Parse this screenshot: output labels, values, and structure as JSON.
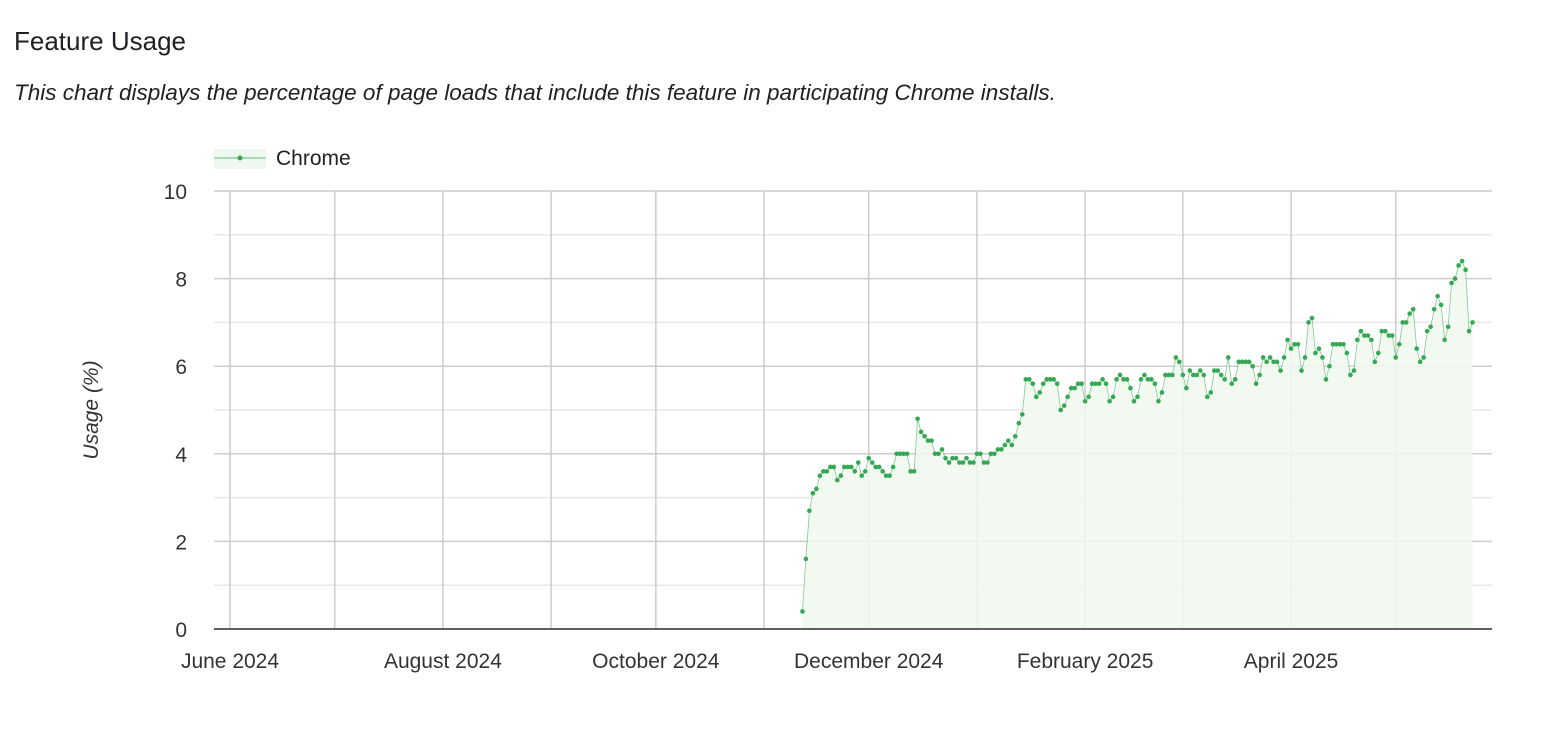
{
  "header": {
    "title": "Feature Usage",
    "subtitle": "This chart displays the percentage of page loads that include this feature in participating Chrome installs."
  },
  "chart_data": {
    "type": "area",
    "title": "",
    "xlabel": "",
    "ylabel": "Usage (%)",
    "ylim": [
      0,
      10
    ],
    "yticks": [
      "0",
      "2",
      "4",
      "6",
      "8",
      "10"
    ],
    "xlim": [
      "2024-06-01",
      "2025-05-28"
    ],
    "xticks": [
      {
        "date": "2024-06-01",
        "label": "June 2024"
      },
      {
        "date": "2024-08-01",
        "label": "August 2024"
      },
      {
        "date": "2024-10-01",
        "label": "October 2024"
      },
      {
        "date": "2024-12-01",
        "label": "December 2024"
      },
      {
        "date": "2025-02-01",
        "label": "February 2025"
      },
      {
        "date": "2025-04-01",
        "label": "April 2025"
      }
    ],
    "grid": true,
    "legend": "top-left",
    "colors": {
      "line": "#34a853",
      "fill": "#eef8ee"
    },
    "series": [
      {
        "name": "Chrome",
        "x_first": "2024-11-12",
        "x_interval": "daily",
        "values": [
          0.4,
          1.6,
          2.7,
          3.1,
          3.2,
          3.5,
          3.6,
          3.6,
          3.7,
          3.7,
          3.4,
          3.5,
          3.7,
          3.7,
          3.7,
          3.6,
          3.8,
          3.5,
          3.6,
          3.9,
          3.8,
          3.7,
          3.7,
          3.6,
          3.5,
          3.5,
          3.7,
          4.0,
          4.0,
          4.0,
          4.0,
          3.6,
          3.6,
          4.8,
          4.5,
          4.4,
          4.3,
          4.3,
          4.0,
          4.0,
          4.1,
          3.9,
          3.8,
          3.9,
          3.9,
          3.8,
          3.8,
          3.9,
          3.8,
          3.8,
          4.0,
          4.0,
          3.8,
          3.8,
          4.0,
          4.0,
          4.1,
          4.1,
          4.2,
          4.3,
          4.2,
          4.4,
          4.7,
          4.9,
          5.7,
          5.7,
          5.6,
          5.3,
          5.4,
          5.6,
          5.7,
          5.7,
          5.7,
          5.6,
          5.0,
          5.1,
          5.3,
          5.5,
          5.5,
          5.6,
          5.6,
          5.2,
          5.3,
          5.6,
          5.6,
          5.6,
          5.7,
          5.6,
          5.2,
          5.3,
          5.7,
          5.8,
          5.7,
          5.7,
          5.5,
          5.2,
          5.3,
          5.7,
          5.8,
          5.7,
          5.7,
          5.6,
          5.2,
          5.4,
          5.8,
          5.8,
          5.8,
          6.2,
          6.1,
          5.8,
          5.5,
          5.9,
          5.8,
          5.8,
          5.9,
          5.8,
          5.3,
          5.4,
          5.9,
          5.9,
          5.8,
          5.7,
          6.2,
          5.6,
          5.7,
          6.1,
          6.1,
          6.1,
          6.1,
          6.0,
          5.6,
          5.8,
          6.2,
          6.1,
          6.2,
          6.1,
          6.1,
          5.9,
          6.2,
          6.6,
          6.4,
          6.5,
          6.5,
          5.9,
          6.2,
          7.0,
          7.1,
          6.3,
          6.4,
          6.2,
          5.7,
          6.0,
          6.5,
          6.5,
          6.5,
          6.5,
          6.3,
          5.8,
          5.9,
          6.6,
          6.8,
          6.7,
          6.7,
          6.6,
          6.1,
          6.3,
          6.8,
          6.8,
          6.7,
          6.7,
          6.2,
          6.5,
          7.0,
          7.0,
          7.2,
          7.3,
          6.4,
          6.1,
          6.2,
          6.8,
          6.9,
          7.3,
          7.6,
          7.4,
          6.6,
          6.9,
          7.9,
          8.0,
          8.3,
          8.4,
          8.2,
          6.8,
          7.0
        ]
      }
    ]
  }
}
